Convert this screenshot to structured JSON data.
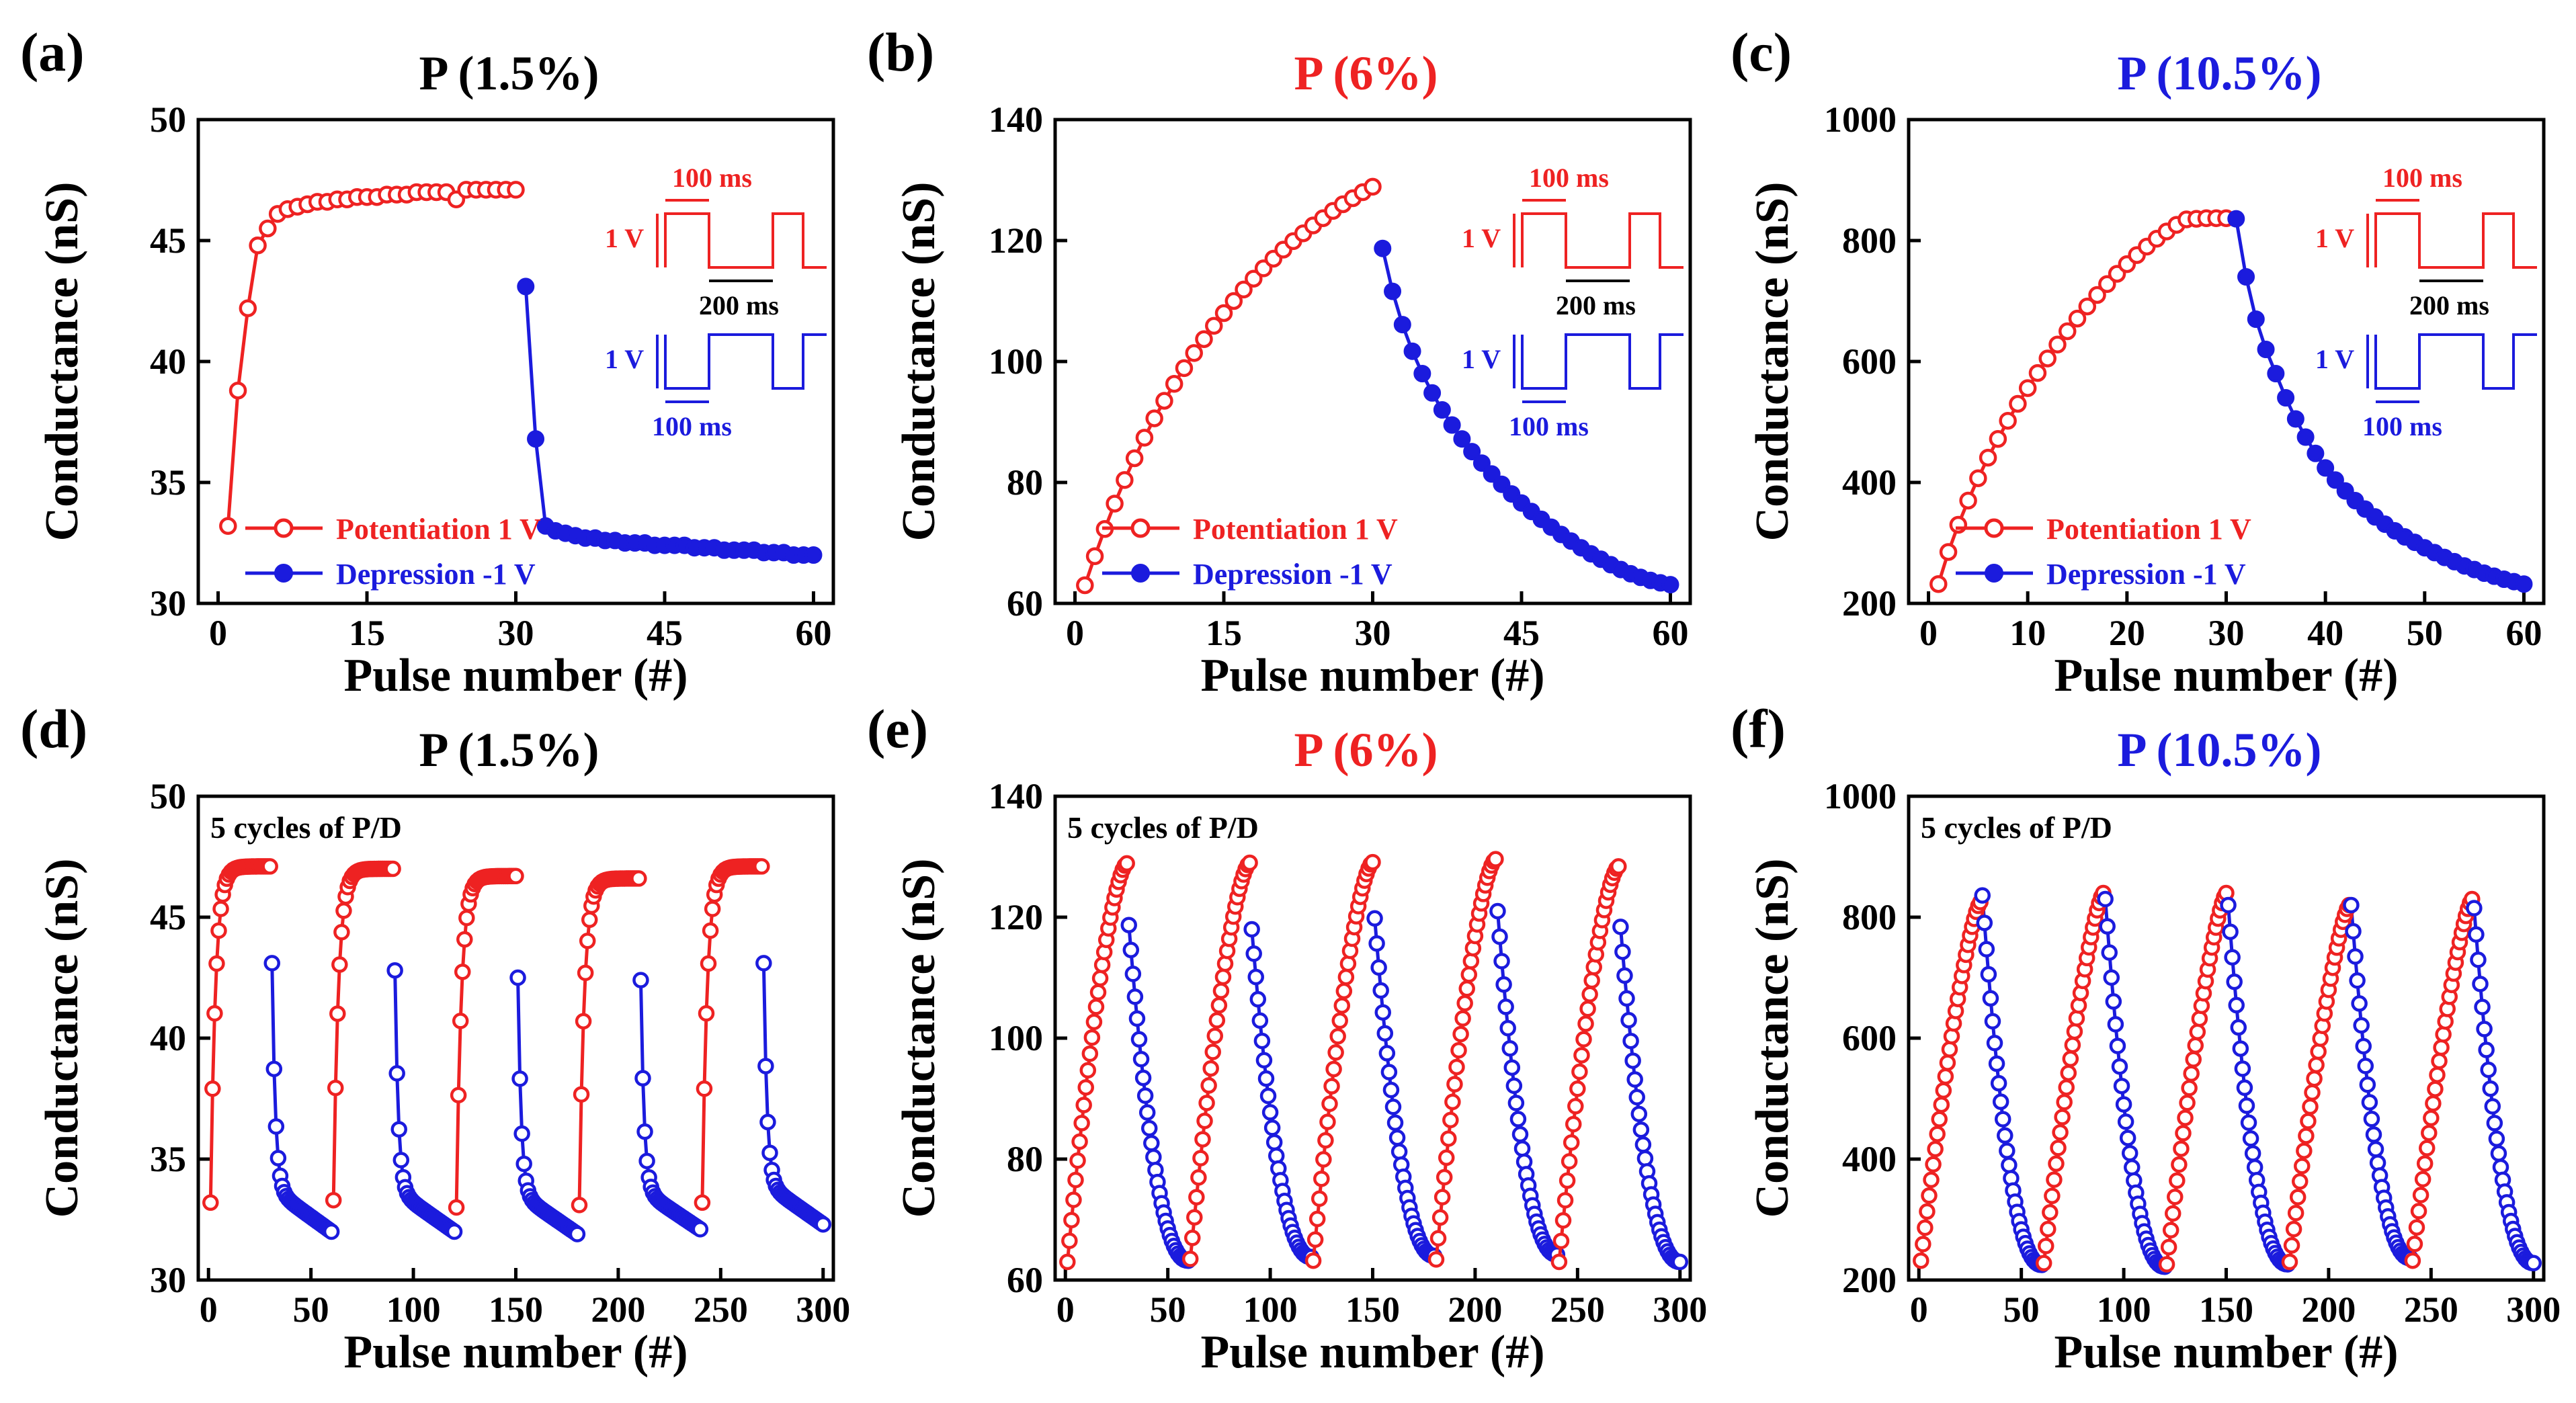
{
  "figure": {
    "panel_count": 6
  },
  "legend_labels": {
    "potentiation": "Potentiation 1 V",
    "depression": "Depression -1 V"
  },
  "inset_labels": {
    "t100": "100 ms",
    "t200": "200 ms",
    "v1": "1 V"
  },
  "colors": {
    "potentiation": "#ee2222",
    "depression": "#1b1bdd",
    "black": "#000000"
  },
  "chart_data": [
    {
      "id": "a",
      "panel_label": "(a)",
      "type": "line",
      "title": "P (1.5%)",
      "title_color": "#000000",
      "xlabel": "Pulse number (#)",
      "ylabel": "Conductance (nS)",
      "xlim": [
        -2,
        62
      ],
      "ylim": [
        30,
        50
      ],
      "xticks": [
        0,
        15,
        30,
        45,
        60
      ],
      "yticks": [
        30,
        35,
        40,
        45,
        50
      ],
      "kind": "single",
      "potentiation": [
        33.2,
        38.8,
        42.2,
        44.8,
        45.5,
        46.1,
        46.3,
        46.4,
        46.5,
        46.6,
        46.6,
        46.7,
        46.7,
        46.8,
        46.8,
        46.8,
        46.9,
        46.9,
        46.9,
        47.0,
        47.0,
        47.0,
        47.0,
        46.7,
        47.1,
        47.1,
        47.1,
        47.1,
        47.1,
        47.1
      ],
      "depression": [
        43.1,
        36.8,
        33.2,
        33.0,
        32.9,
        32.8,
        32.7,
        32.7,
        32.6,
        32.6,
        32.5,
        32.5,
        32.5,
        32.4,
        32.4,
        32.4,
        32.4,
        32.3,
        32.3,
        32.3,
        32.2,
        32.2,
        32.2,
        32.2,
        32.1,
        32.1,
        32.1,
        32.0,
        32.0,
        32.0
      ],
      "legend": true,
      "inset": true
    },
    {
      "id": "b",
      "panel_label": "(b)",
      "type": "line",
      "title": "P (6%)",
      "title_color": "#ee2222",
      "xlabel": "Pulse number (#)",
      "ylabel": "Conductance (nS)",
      "xlim": [
        -2,
        62
      ],
      "ylim": [
        60,
        140
      ],
      "xticks": [
        0,
        15,
        30,
        45,
        60
      ],
      "yticks": [
        60,
        80,
        100,
        120,
        140
      ],
      "kind": "single",
      "potentiation": [
        63.0,
        67.8,
        72.3,
        76.5,
        80.4,
        84.0,
        87.4,
        90.6,
        93.5,
        96.3,
        98.9,
        101.4,
        103.7,
        105.9,
        108.0,
        110.0,
        111.9,
        113.7,
        115.4,
        117.0,
        118.5,
        119.9,
        121.2,
        122.5,
        123.7,
        124.9,
        126.0,
        127.0,
        128.0,
        128.9
      ],
      "depression": [
        118.7,
        111.6,
        106.1,
        101.7,
        98.0,
        94.8,
        92.0,
        89.5,
        87.2,
        85.1,
        83.2,
        81.4,
        79.7,
        78.1,
        76.6,
        75.2,
        73.9,
        72.6,
        71.4,
        70.3,
        69.2,
        68.2,
        67.3,
        66.4,
        65.6,
        64.9,
        64.3,
        63.8,
        63.4,
        63.1
      ],
      "legend": true,
      "inset": true
    },
    {
      "id": "c",
      "panel_label": "(c)",
      "type": "line",
      "title": "P (10.5%)",
      "title_color": "#1b1bdd",
      "xlabel": "Pulse number (#)",
      "ylabel": "Conductance (nS)",
      "xlim": [
        -2,
        62
      ],
      "ylim": [
        200,
        1000
      ],
      "xticks": [
        0,
        10,
        20,
        30,
        40,
        50,
        60
      ],
      "yticks": [
        200,
        400,
        600,
        800,
        1000
      ],
      "kind": "single",
      "potentiation": [
        232,
        285,
        330,
        370,
        407,
        441,
        472,
        502,
        530,
        556,
        581,
        605,
        628,
        650,
        671,
        691,
        710,
        728,
        745,
        761,
        776,
        790,
        803,
        815,
        826,
        835,
        836,
        837,
        837,
        837
      ],
      "depression": [
        836,
        740,
        670,
        620,
        580,
        540,
        505,
        475,
        448,
        424,
        404,
        386,
        370,
        356,
        343,
        331,
        320,
        310,
        301,
        292,
        284,
        276,
        269,
        262,
        256,
        250,
        245,
        240,
        236,
        232
      ],
      "legend": true,
      "inset": true
    },
    {
      "id": "d",
      "panel_label": "(d)",
      "type": "line",
      "title": "P (1.5%)",
      "title_color": "#000000",
      "xlabel": "Pulse number (#)",
      "ylabel": "Conductance (nS)",
      "xlim": [
        -5,
        305
      ],
      "ylim": [
        30,
        50
      ],
      "xticks": [
        0,
        50,
        100,
        150,
        200,
        250,
        300
      ],
      "yticks": [
        30,
        35,
        40,
        45,
        50
      ],
      "kind": "cycles",
      "cycles": 5,
      "half": 30,
      "note": "5 cycles of P/D",
      "cycle_peaks": [
        47.1,
        47.0,
        46.7,
        46.6,
        47.1
      ],
      "cycle_dep_starts": [
        43.1,
        42.8,
        42.5,
        42.4,
        43.1
      ],
      "legend": false,
      "inset": false
    },
    {
      "id": "e",
      "panel_label": "(e)",
      "type": "line",
      "title": "P (6%)",
      "title_color": "#ee2222",
      "xlabel": "Pulse number (#)",
      "ylabel": "Conductance (nS)",
      "xlim": [
        -5,
        305
      ],
      "ylim": [
        60,
        140
      ],
      "xticks": [
        0,
        50,
        100,
        150,
        200,
        250,
        300
      ],
      "yticks": [
        60,
        80,
        100,
        120,
        140
      ],
      "kind": "cycles",
      "cycles": 5,
      "half": 30,
      "note": "5 cycles of P/D",
      "cycle_peaks": [
        128.9,
        129.0,
        129.1,
        129.6,
        128.4
      ],
      "cycle_dep_starts": [
        118.7,
        118.0,
        119.8,
        121.0,
        118.4
      ],
      "legend": false,
      "inset": false
    },
    {
      "id": "f",
      "panel_label": "(f)",
      "type": "line",
      "title": "P (10.5%)",
      "title_color": "#1b1bdd",
      "xlabel": "Pulse number (#)",
      "ylabel": "Conductance (nS)",
      "xlim": [
        -5,
        305
      ],
      "ylim": [
        200,
        1000
      ],
      "xticks": [
        0,
        50,
        100,
        150,
        200,
        250,
        300
      ],
      "yticks": [
        200,
        400,
        600,
        800,
        1000
      ],
      "kind": "cycles",
      "cycles": 5,
      "half": 30,
      "note": "5 cycles of P/D",
      "cycle_peaks": [
        825,
        840,
        840,
        820,
        830
      ],
      "cycle_dep_starts": [
        836,
        830,
        820,
        820,
        815
      ],
      "legend": false,
      "inset": false
    }
  ]
}
